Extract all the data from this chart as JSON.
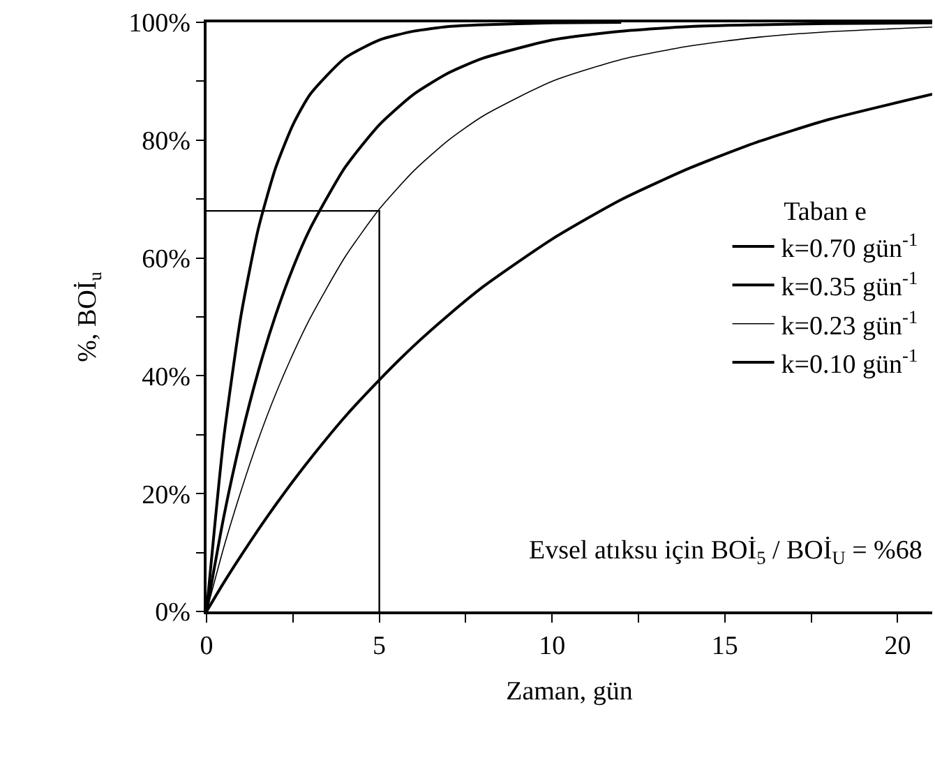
{
  "chart_data": {
    "type": "line",
    "xlabel": "Zaman, gün",
    "ylabel": "%, BOİ$_{u}$",
    "legend_title": "Taban e",
    "x": [
      0,
      0.5,
      1,
      1.5,
      2,
      2.5,
      3,
      4,
      5,
      6,
      7,
      8,
      10,
      12,
      14,
      16,
      18,
      21
    ],
    "series": [
      {
        "name": "k=0.70 gün$^{-1}$",
        "color": "#000000",
        "x": [
          0,
          0.5,
          1,
          1.5,
          2,
          2.5,
          3,
          4,
          5,
          6,
          7,
          8,
          10,
          12
        ],
        "values": [
          0,
          29.5,
          50.3,
          65.0,
          75.3,
          82.6,
          87.8,
          93.9,
          97.0,
          98.5,
          99.3,
          99.6,
          99.9,
          100
        ]
      },
      {
        "name": "k=0.35 gün$^{-1}$",
        "color": "#000000",
        "values": [
          0,
          16.1,
          29.5,
          40.8,
          50.3,
          58.3,
          65.0,
          75.3,
          82.6,
          87.8,
          91.4,
          93.9,
          97.0,
          98.5,
          99.3,
          99.6,
          99.8,
          99.9
        ]
      },
      {
        "name": "k=0.23 gün$^{-1}$",
        "color": "#000000",
        "values": [
          0,
          10.9,
          20.5,
          29.2,
          36.9,
          43.7,
          49.8,
          60.1,
          68.3,
          74.8,
          80.0,
          84.1,
          90.0,
          93.7,
          96.0,
          97.5,
          98.4,
          99.2
        ]
      },
      {
        "name": "k=0.10 gün$^{-1}$",
        "color": "#000000",
        "values": [
          0,
          4.9,
          9.5,
          13.9,
          18.1,
          22.1,
          25.9,
          33.0,
          39.3,
          45.1,
          50.3,
          55.1,
          63.2,
          69.9,
          75.3,
          79.8,
          83.5,
          87.8
        ]
      },
      {
        "color": "#000000",
        "x": [
          0,
          5,
          5
        ],
        "values": [
          68,
          68,
          0
        ]
      }
    ],
    "annotations": [
      "Evsel atıksu için BOİ$_{5}$ / BOİ$_{U}$ = %68"
    ],
    "xlim": [
      0,
      21
    ],
    "xticks": [
      0,
      {
        "value": 2.5,
        "label": null
      },
      5,
      {
        "value": 7.5,
        "label": null
      },
      10,
      {
        "value": 12.5,
        "label": null
      },
      15,
      {
        "value": 17.5,
        "label": null
      },
      20
    ],
    "ylim": [
      0,
      100
    ],
    "yticks": [
      {
        "value": 0,
        "label": "0%"
      },
      {
        "value": 10,
        "label": null
      },
      {
        "value": 20,
        "label": "20%"
      },
      {
        "value": 30,
        "label": null
      },
      {
        "value": 40,
        "label": "40%"
      },
      {
        "value": 50,
        "label": null
      },
      {
        "value": 60,
        "label": "60%"
      },
      {
        "value": 70,
        "label": null
      },
      {
        "value": 80,
        "label": "80%"
      },
      {
        "value": 90,
        "label": null
      },
      {
        "value": 100,
        "label": "100%"
      }
    ],
    "legend": "right",
    "marker": "none",
    "line_style": "solid"
  }
}
